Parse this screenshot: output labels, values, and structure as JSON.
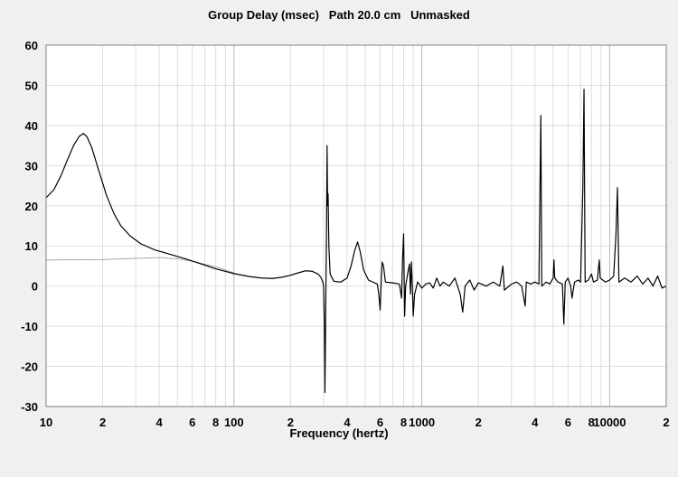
{
  "chart_data": {
    "type": "line",
    "title": "Group Delay (msec)   Path 20.0 cm   Unmasked",
    "xlabel": "Frequency (hertz)",
    "ylabel": "",
    "x_scale": "log",
    "xlim": [
      10,
      20000
    ],
    "ylim": [
      -30,
      60
    ],
    "grid": true,
    "yticks": [
      60,
      50,
      40,
      30,
      20,
      10,
      0,
      -10,
      -20,
      -30
    ],
    "xticks": [
      {
        "value": 10,
        "label": "10"
      },
      {
        "value": 20,
        "label": "2"
      },
      {
        "value": 40,
        "label": "4"
      },
      {
        "value": 60,
        "label": "6"
      },
      {
        "value": 80,
        "label": "8"
      },
      {
        "value": 100,
        "label": "100"
      },
      {
        "value": 200,
        "label": "2"
      },
      {
        "value": 400,
        "label": "4"
      },
      {
        "value": 600,
        "label": "6"
      },
      {
        "value": 800,
        "label": "8"
      },
      {
        "value": 1000,
        "label": "1000"
      },
      {
        "value": 2000,
        "label": "2"
      },
      {
        "value": 4000,
        "label": "4"
      },
      {
        "value": 6000,
        "label": "6"
      },
      {
        "value": 8000,
        "label": "8"
      },
      {
        "value": 10000,
        "label": "10000"
      },
      {
        "value": 20000,
        "label": "2"
      }
    ],
    "series": [
      {
        "color": "#000000",
        "points": [
          [
            10,
            22
          ],
          [
            11,
            24
          ],
          [
            12,
            27.5
          ],
          [
            13,
            31.5
          ],
          [
            14,
            35
          ],
          [
            15,
            37.3
          ],
          [
            15.8,
            38
          ],
          [
            16.5,
            37.2
          ],
          [
            17.5,
            34.5
          ],
          [
            19,
            29
          ],
          [
            21,
            22.5
          ],
          [
            23,
            18
          ],
          [
            25,
            15
          ],
          [
            28,
            12.5
          ],
          [
            32,
            10.5
          ],
          [
            38,
            9
          ],
          [
            45,
            8
          ],
          [
            55,
            6.8
          ],
          [
            65,
            5.7
          ],
          [
            80,
            4.3
          ],
          [
            100,
            3.1
          ],
          [
            120,
            2.4
          ],
          [
            140,
            2.0
          ],
          [
            160,
            1.9
          ],
          [
            180,
            2.2
          ],
          [
            200,
            2.7
          ],
          [
            220,
            3.3
          ],
          [
            240,
            3.8
          ],
          [
            260,
            3.7
          ],
          [
            280,
            3.0
          ],
          [
            290,
            2.2
          ],
          [
            297,
            1.0
          ],
          [
            300,
            0
          ],
          [
            303,
            -10
          ],
          [
            305,
            -26.5
          ],
          [
            307,
            -12
          ],
          [
            309,
            2
          ],
          [
            311,
            14
          ],
          [
            313,
            35
          ],
          [
            315,
            20
          ],
          [
            317,
            23
          ],
          [
            320,
            10
          ],
          [
            325,
            3
          ],
          [
            340,
            1.2
          ],
          [
            370,
            1.0
          ],
          [
            400,
            2
          ],
          [
            420,
            5
          ],
          [
            440,
            9
          ],
          [
            455,
            11
          ],
          [
            470,
            8.5
          ],
          [
            490,
            4
          ],
          [
            520,
            1.5
          ],
          [
            560,
            0.8
          ],
          [
            580,
            0.5
          ],
          [
            590,
            -2
          ],
          [
            600,
            -6
          ],
          [
            610,
            3
          ],
          [
            615,
            6
          ],
          [
            625,
            5
          ],
          [
            640,
            1
          ],
          [
            700,
            0.8
          ],
          [
            760,
            0.5
          ],
          [
            780,
            -3
          ],
          [
            790,
            7
          ],
          [
            800,
            13
          ],
          [
            810,
            -7.5
          ],
          [
            820,
            0
          ],
          [
            840,
            3
          ],
          [
            860,
            5.5
          ],
          [
            870,
            -2
          ],
          [
            880,
            6
          ],
          [
            890,
            0
          ],
          [
            900,
            -7.5
          ],
          [
            915,
            -2
          ],
          [
            950,
            1
          ],
          [
            1000,
            -0.5
          ],
          [
            1050,
            0.5
          ],
          [
            1100,
            0.8
          ],
          [
            1150,
            -0.5
          ],
          [
            1200,
            2
          ],
          [
            1250,
            0
          ],
          [
            1300,
            1
          ],
          [
            1400,
            0
          ],
          [
            1500,
            2
          ],
          [
            1600,
            -2
          ],
          [
            1650,
            -6.5
          ],
          [
            1700,
            0
          ],
          [
            1800,
            1.5
          ],
          [
            1900,
            -1
          ],
          [
            2000,
            0.8
          ],
          [
            2200,
            0
          ],
          [
            2400,
            1
          ],
          [
            2600,
            0
          ],
          [
            2700,
            5
          ],
          [
            2750,
            -1
          ],
          [
            3000,
            0.5
          ],
          [
            3200,
            1
          ],
          [
            3400,
            0
          ],
          [
            3550,
            -5
          ],
          [
            3600,
            1
          ],
          [
            3800,
            0.5
          ],
          [
            4000,
            1
          ],
          [
            4200,
            0.5
          ],
          [
            4250,
            22
          ],
          [
            4300,
            42.5
          ],
          [
            4350,
            0
          ],
          [
            4600,
            1
          ],
          [
            4800,
            0.5
          ],
          [
            5000,
            2
          ],
          [
            5050,
            6.5
          ],
          [
            5100,
            2
          ],
          [
            5300,
            1
          ],
          [
            5600,
            0.5
          ],
          [
            5700,
            -9.5
          ],
          [
            5800,
            1
          ],
          [
            6000,
            2
          ],
          [
            6200,
            0
          ],
          [
            6300,
            -3
          ],
          [
            6500,
            1
          ],
          [
            6800,
            1.5
          ],
          [
            7000,
            1
          ],
          [
            7200,
            25
          ],
          [
            7300,
            49
          ],
          [
            7400,
            1
          ],
          [
            7700,
            1.5
          ],
          [
            8000,
            3
          ],
          [
            8200,
            1
          ],
          [
            8600,
            1.5
          ],
          [
            8800,
            6.5
          ],
          [
            8900,
            2
          ],
          [
            9500,
            1
          ],
          [
            10000,
            1.5
          ],
          [
            10500,
            2.5
          ],
          [
            10800,
            13
          ],
          [
            11000,
            24.5
          ],
          [
            11200,
            1
          ],
          [
            12000,
            2
          ],
          [
            13000,
            1
          ],
          [
            14000,
            2.5
          ],
          [
            15000,
            0.5
          ],
          [
            16000,
            2
          ],
          [
            17000,
            0
          ],
          [
            18000,
            2.5
          ],
          [
            19000,
            -0.5
          ],
          [
            20000,
            0
          ]
        ]
      },
      {
        "color": "#a8a8a8",
        "points": [
          [
            10,
            6.5
          ],
          [
            20,
            6.6
          ],
          [
            30,
            6.9
          ],
          [
            40,
            7.1
          ],
          [
            50,
            6.8
          ],
          [
            60,
            6.2
          ],
          [
            80,
            4.8
          ],
          [
            100,
            3.3
          ]
        ]
      }
    ]
  }
}
